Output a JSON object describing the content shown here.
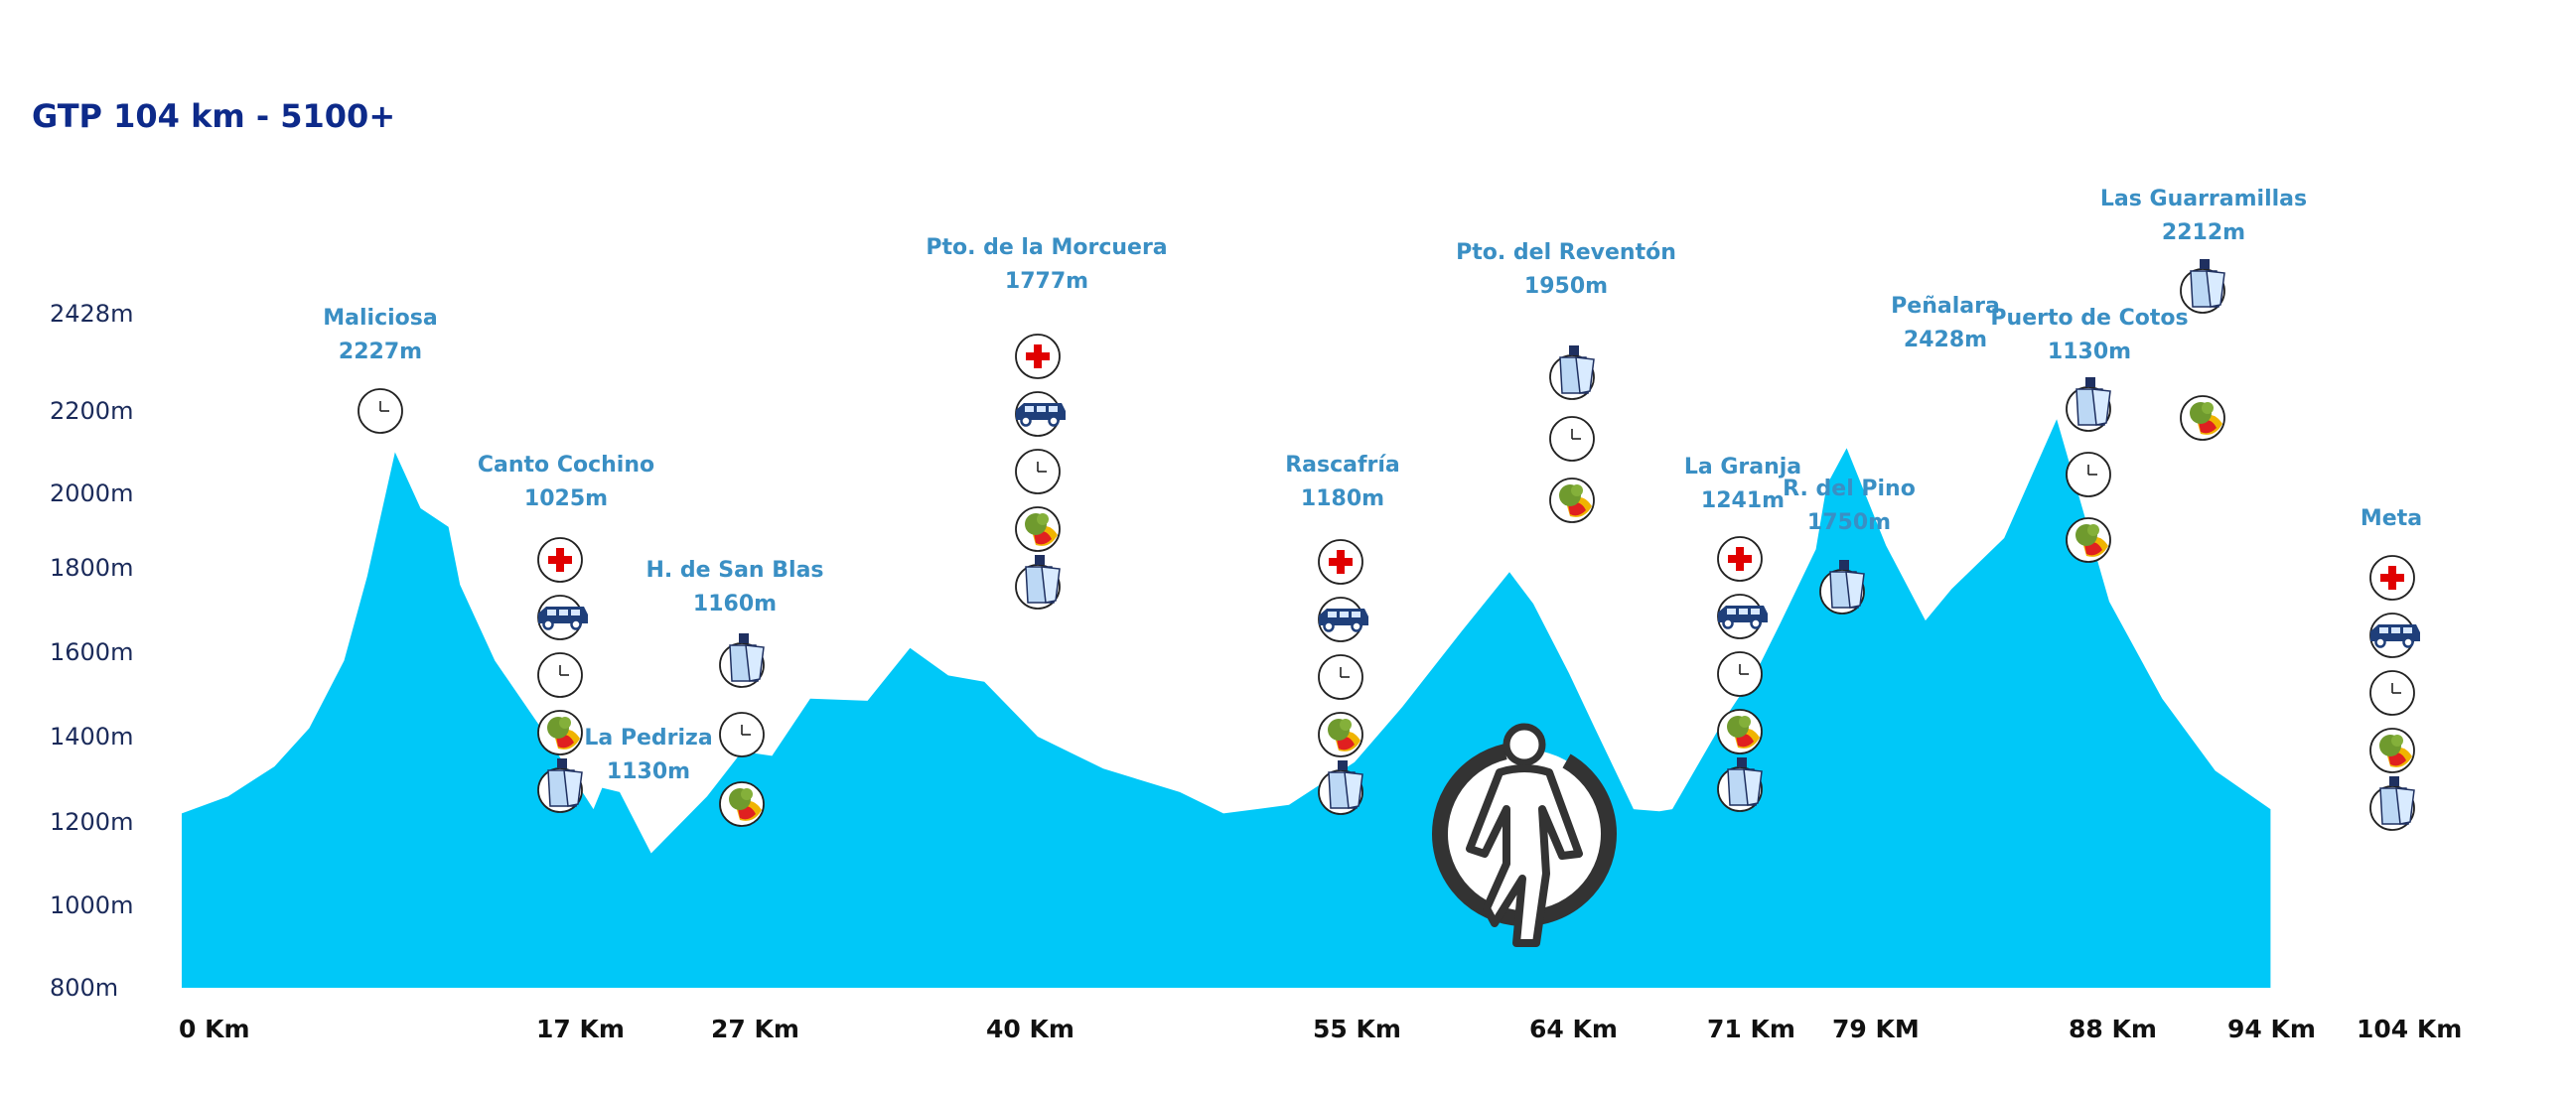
{
  "chart_data": {
    "type": "area",
    "title": "GTP 104 km - 5100+",
    "xlabel": "",
    "ylabel": "",
    "ylim": [
      800,
      2428
    ],
    "y_ticks": [
      "800m",
      "1000m",
      "1200m",
      "1400m",
      "1600m",
      "1800m",
      "2000m",
      "2200m",
      "2428m"
    ],
    "y_tick_values": [
      800,
      1000,
      1200,
      1400,
      1600,
      1800,
      2000,
      2200,
      2428
    ],
    "x_ticks": [
      {
        "label": "0 Km",
        "km": 0
      },
      {
        "label": "17 Km",
        "km": 17
      },
      {
        "label": "27 Km",
        "km": 27
      },
      {
        "label": "40 Km",
        "km": 40
      },
      {
        "label": "55 Km",
        "km": 55
      },
      {
        "label": "64 Km",
        "km": 64
      },
      {
        "label": "71 Km",
        "km": 71
      },
      {
        "label": "79 KM",
        "km": 79
      },
      {
        "label": "88 Km",
        "km": 88
      },
      {
        "label": "94 Km",
        "km": 94
      },
      {
        "label": "104 Km",
        "km": 104
      }
    ],
    "profile": [
      [
        0,
        1220
      ],
      [
        2,
        1260
      ],
      [
        4,
        1330
      ],
      [
        5.5,
        1420
      ],
      [
        7,
        1580
      ],
      [
        8,
        1780
      ],
      [
        9.2,
        2100
      ],
      [
        10.3,
        1960
      ],
      [
        11.5,
        1910
      ],
      [
        12,
        1760
      ],
      [
        13.5,
        1580
      ],
      [
        15.5,
        1420
      ],
      [
        18,
        1230
      ],
      [
        18.5,
        1280
      ],
      [
        19.5,
        1270
      ],
      [
        21.3,
        1125
      ],
      [
        24.5,
        1260
      ],
      [
        26.5,
        1365
      ],
      [
        28,
        1355
      ],
      [
        29.8,
        1490
      ],
      [
        32.5,
        1485
      ],
      [
        34.5,
        1610
      ],
      [
        36.3,
        1545
      ],
      [
        38,
        1530
      ],
      [
        40.5,
        1400
      ],
      [
        43.5,
        1325
      ],
      [
        47,
        1270
      ],
      [
        49,
        1220
      ],
      [
        52,
        1240
      ],
      [
        55,
        1340
      ],
      [
        57,
        1470
      ],
      [
        59.5,
        1650
      ],
      [
        61.5,
        1790
      ],
      [
        62.5,
        1715
      ],
      [
        64,
        1550
      ],
      [
        65,
        1420
      ],
      [
        66.5,
        1230
      ],
      [
        67.5,
        1225
      ],
      [
        68,
        1230
      ],
      [
        70,
        1440
      ],
      [
        71.5,
        1560
      ],
      [
        73,
        1670
      ],
      [
        75.3,
        1850
      ],
      [
        76,
        2020
      ],
      [
        77.3,
        2110
      ],
      [
        79.5,
        1860
      ],
      [
        81,
        1675
      ],
      [
        82,
        1750
      ],
      [
        84,
        1880
      ],
      [
        86,
        2180
      ],
      [
        88,
        1720
      ],
      [
        90,
        1490
      ],
      [
        92,
        1320
      ],
      [
        94.2,
        1230
      ]
    ],
    "waypoints": [
      {
        "name": "Maliciosa",
        "elevation": "2227m",
        "km": 9.2,
        "icons": [
          "clock-icon"
        ]
      },
      {
        "name": "Canto Cochino",
        "elevation": "1025m",
        "km": 17.9,
        "icons": [
          "medical-cross-icon",
          "van-icon",
          "clock-icon",
          "food-icon",
          "water-icon"
        ]
      },
      {
        "name": "La Pedriza",
        "elevation": "1130m",
        "km": 21.8,
        "icons": []
      },
      {
        "name": "H. de San Blas",
        "elevation": "1160m",
        "km": 26,
        "icons": [
          "water-icon",
          "clock-icon",
          "food-icon"
        ]
      },
      {
        "name": "Pto. de la Morcuera",
        "elevation": "1777m",
        "km": 40,
        "icons": [
          "medical-cross-icon",
          "van-icon",
          "clock-icon",
          "food-icon",
          "water-icon"
        ]
      },
      {
        "name": "Rascafría",
        "elevation": "1180m",
        "km": 55,
        "icons": [
          "medical-cross-icon",
          "van-icon",
          "clock-icon",
          "food-icon",
          "water-icon"
        ]
      },
      {
        "name": "Pto. del Reventón",
        "elevation": "1950m",
        "km": 64,
        "icons": [
          "water-icon",
          "clock-icon",
          "food-icon"
        ]
      },
      {
        "name": "La Granja",
        "elevation": "1241m",
        "km": 71,
        "icons": [
          "medical-cross-icon",
          "van-icon",
          "clock-icon",
          "food-icon",
          "water-icon"
        ]
      },
      {
        "name": "R. del Pino",
        "elevation": "1750m",
        "km": 79,
        "icons": [
          "water-icon"
        ]
      },
      {
        "name": "Peñalara",
        "elevation": "2428m",
        "km": 84,
        "icons": []
      },
      {
        "name": "Puerto de Cotos",
        "elevation": "1130m",
        "km": 88,
        "icons": [
          "water-icon",
          "clock-icon",
          "food-icon"
        ]
      },
      {
        "name": "Las Guarramillas",
        "elevation": "2212m",
        "km": 94,
        "icons": [
          "water-icon",
          "food-icon"
        ]
      },
      {
        "name": "Meta",
        "elevation": "",
        "km": 104,
        "icons": [
          "medical-cross-icon",
          "van-icon",
          "clock-icon",
          "food-icon",
          "water-icon"
        ]
      }
    ],
    "logo": "runner-logo",
    "colors": {
      "fill": "#00c8f8",
      "title": "#0d2a8a",
      "labels": "#3a8fc4",
      "medical": "#e00000",
      "van": "#1f3f7a",
      "water": "#bcd8f5"
    }
  }
}
